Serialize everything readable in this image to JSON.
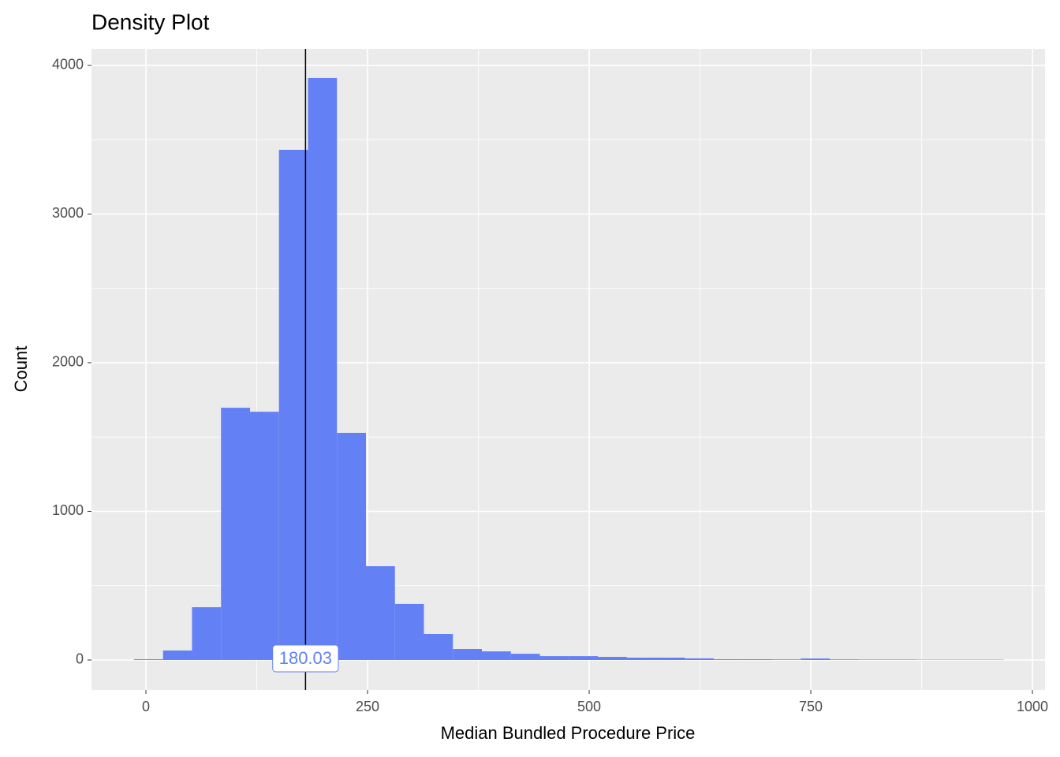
{
  "chart_data": {
    "type": "histogram",
    "title": "Density Plot",
    "x_label": "Median Bundled Procedure Price",
    "y_label": "Count",
    "color": "#6380F5",
    "bins": [
      -13.4,
      19.3,
      52,
      84.7,
      117.4,
      150.1,
      182.8,
      215.5,
      248.2,
      280.9,
      313.6,
      346.3,
      379,
      411.7,
      444.4,
      477.1,
      509.8,
      542.5,
      575.2,
      607.9,
      640.6,
      673.3,
      706,
      738.7,
      771.4,
      804.1,
      836.8,
      869.5,
      902.2,
      934.9,
      967.6
    ],
    "counts": [
      5,
      64,
      355,
      1697,
      1670,
      3432,
      3915,
      1528,
      631,
      377,
      175,
      74,
      58,
      42,
      26,
      26,
      21,
      16,
      16,
      11,
      5,
      5,
      4,
      10,
      4,
      3,
      3,
      2,
      2,
      2
    ],
    "vline": 180.03,
    "xlim": [
      -61.4,
      1014.2
    ],
    "ylim": [
      -201.6,
      4111
    ],
    "xticks": [
      0,
      250,
      500,
      750,
      1000
    ],
    "yticks": [
      0,
      1000,
      2000,
      3000,
      4000
    ],
    "grid": true
  }
}
